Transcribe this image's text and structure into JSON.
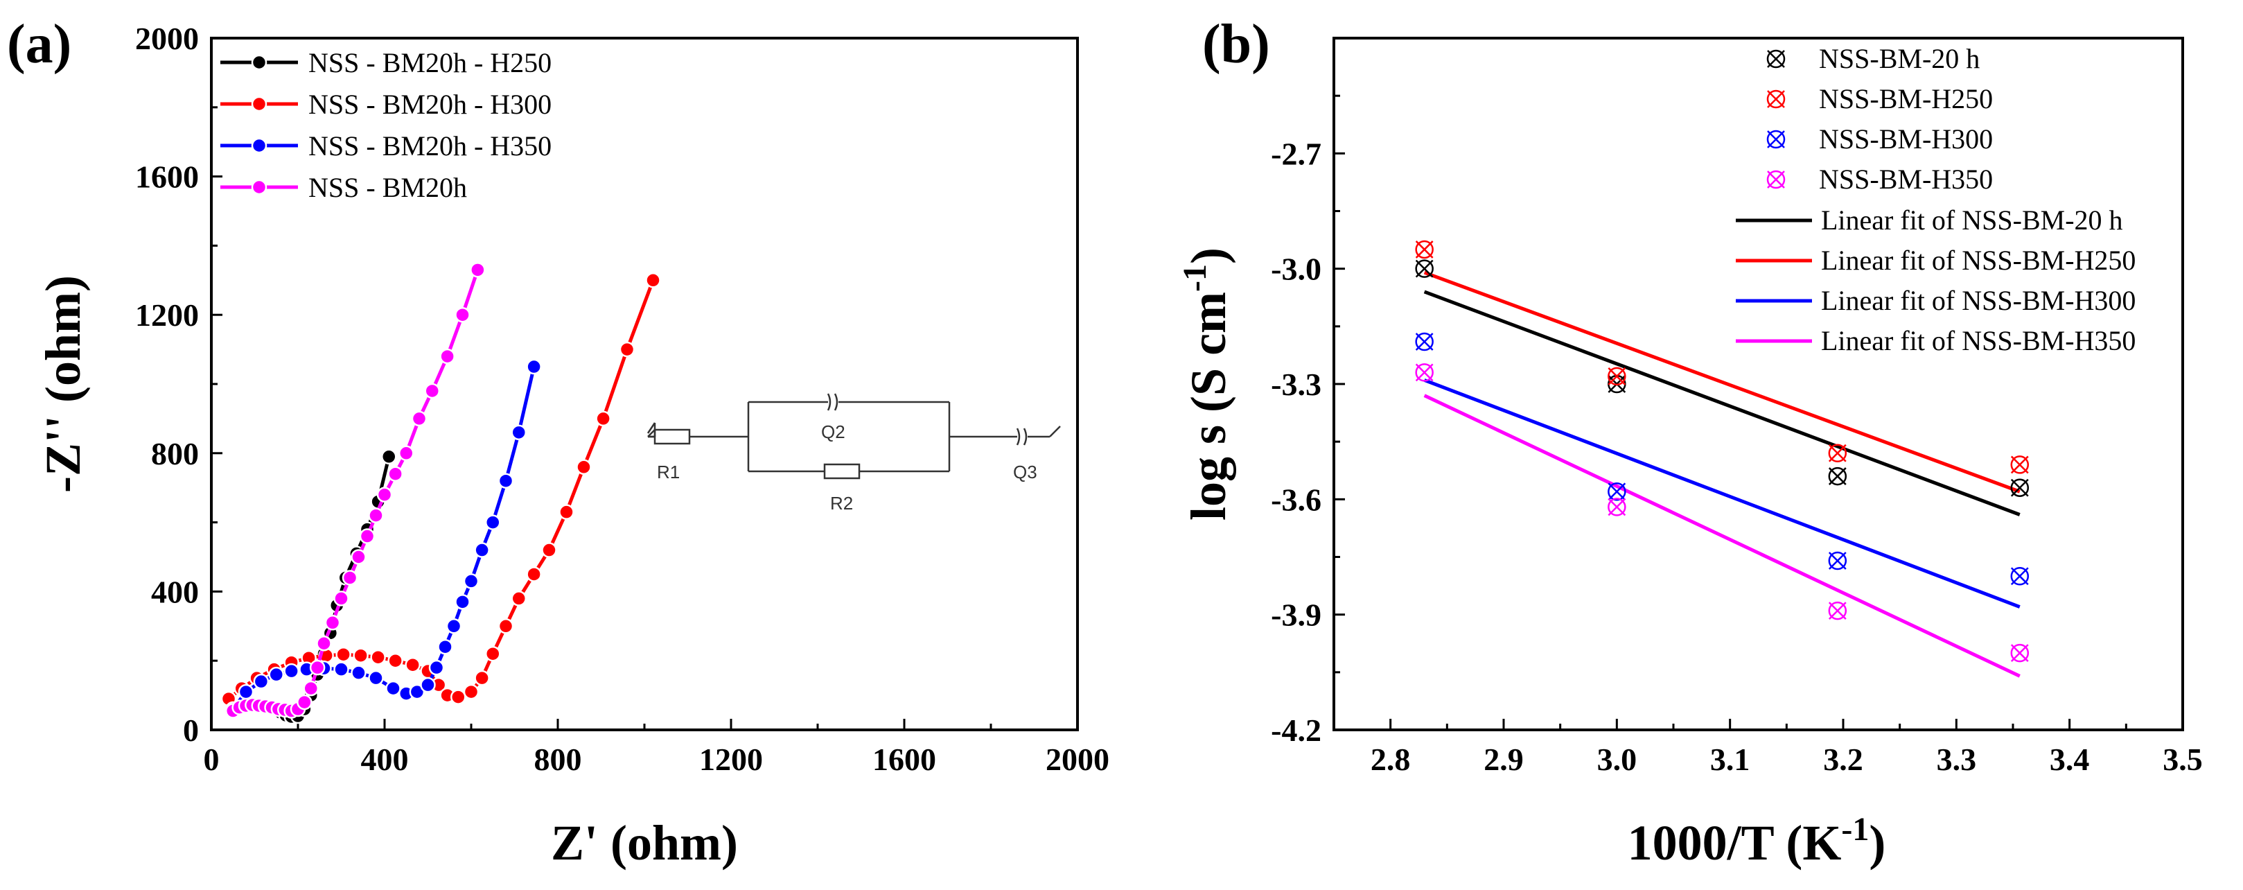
{
  "chart_data": [
    {
      "type": "line",
      "panel_label": "(a)",
      "xlabel": "Z' (ohm)",
      "ylabel": "-Z'' (ohm)",
      "xlim": [
        0,
        2000
      ],
      "ylim": [
        0,
        2000
      ],
      "xticks": [
        "0",
        "400",
        "800",
        "1200",
        "1600",
        "2000"
      ],
      "yticks": [
        "0",
        "400",
        "800",
        "1200",
        "1600",
        "2000"
      ],
      "legend_position": "top-left",
      "series": [
        {
          "name": "NSS - BM20h - H250",
          "color": "#000000",
          "marker": "circle",
          "x": [
            150,
            160,
            172,
            185,
            200,
            215,
            230,
            245,
            260,
            275,
            290,
            310,
            335,
            360,
            385,
            410
          ],
          "y": [
            60,
            50,
            42,
            38,
            40,
            60,
            100,
            160,
            220,
            280,
            360,
            440,
            510,
            580,
            660,
            790
          ]
        },
        {
          "name": "NSS - BM20h - H300",
          "color": "#ff0000",
          "marker": "circle",
          "x": [
            40,
            70,
            105,
            145,
            185,
            225,
            265,
            305,
            345,
            385,
            425,
            465,
            500,
            525,
            545,
            570,
            600,
            625,
            650,
            680,
            710,
            745,
            780,
            820,
            860,
            905,
            960,
            1020
          ],
          "y": [
            90,
            120,
            150,
            175,
            195,
            208,
            215,
            218,
            215,
            210,
            200,
            188,
            170,
            130,
            100,
            95,
            110,
            150,
            220,
            300,
            380,
            450,
            520,
            630,
            760,
            900,
            1100,
            1300
          ]
        },
        {
          "name": "NSS - BM20h - H350",
          "color": "#0000ff",
          "marker": "circle",
          "x": [
            50,
            80,
            115,
            150,
            185,
            220,
            260,
            300,
            340,
            380,
            420,
            450,
            475,
            500,
            520,
            540,
            560,
            580,
            600,
            625,
            650,
            680,
            710,
            745
          ],
          "y": [
            60,
            110,
            140,
            160,
            170,
            175,
            178,
            175,
            165,
            150,
            120,
            105,
            110,
            130,
            180,
            240,
            300,
            370,
            430,
            520,
            600,
            720,
            860,
            1050
          ]
        },
        {
          "name": "NSS - BM20h",
          "color": "#ff00ff",
          "marker": "circle",
          "x": [
            50,
            65,
            80,
            95,
            110,
            125,
            140,
            155,
            170,
            185,
            200,
            215,
            230,
            245,
            260,
            280,
            300,
            320,
            340,
            360,
            380,
            400,
            425,
            450,
            480,
            510,
            545,
            580,
            615
          ],
          "y": [
            55,
            65,
            70,
            72,
            70,
            68,
            65,
            60,
            58,
            55,
            60,
            80,
            120,
            180,
            250,
            310,
            380,
            440,
            500,
            560,
            620,
            680,
            740,
            800,
            900,
            980,
            1080,
            1200,
            1330
          ]
        }
      ],
      "inset_circuit_labels": [
        "R1",
        "Q2",
        "R2",
        "Q3"
      ]
    },
    {
      "type": "scatter",
      "panel_label": "(b)",
      "xlabel": "1000/T (K",
      "xlabel_sup": "-1",
      "xlabel_end": ")",
      "ylabel": "log s (S cm",
      "ylabel_sup": "-1",
      "ylabel_end": ")",
      "xlim": [
        2.75,
        3.5
      ],
      "ylim": [
        -4.2,
        -2.4
      ],
      "xticks": [
        "2.8",
        "2.9",
        "3.0",
        "3.1",
        "3.2",
        "3.3",
        "3.4",
        "3.5"
      ],
      "yticks": [
        "-2.7",
        "-3.0",
        "-3.3",
        "-3.6",
        "-3.9",
        "-4.2"
      ],
      "legend_position": "top-right",
      "x": [
        2.83,
        3.0,
        3.195,
        3.356
      ],
      "series": [
        {
          "name": "NSS-BM-20 h",
          "color": "#000000",
          "marker": "crossed-circle",
          "y": [
            -3.0,
            -3.3,
            -3.54,
            -3.57
          ]
        },
        {
          "name": "NSS-BM-H250",
          "color": "#ff0000",
          "marker": "crossed-circle",
          "y": [
            -2.95,
            -3.28,
            -3.48,
            -3.51
          ]
        },
        {
          "name": "NSS-BM-H300",
          "color": "#0000ff",
          "marker": "crossed-circle",
          "y": [
            -3.19,
            -3.58,
            -3.76,
            -3.8
          ]
        },
        {
          "name": "NSS-BM-H350",
          "color": "#ff00ff",
          "marker": "crossed-circle",
          "y": [
            -3.27,
            -3.62,
            -3.89,
            -4.0
          ]
        }
      ],
      "fits": [
        {
          "name": "Linear fit of NSS-BM-20 h",
          "color": "#000000",
          "x": [
            2.83,
            3.356
          ],
          "y": [
            -3.06,
            -3.64
          ]
        },
        {
          "name": "Linear fit of NSS-BM-H250",
          "color": "#ff0000",
          "x": [
            2.83,
            3.356
          ],
          "y": [
            -3.01,
            -3.58
          ]
        },
        {
          "name": "Linear fit of NSS-BM-H300",
          "color": "#0000ff",
          "x": [
            2.83,
            3.356
          ],
          "y": [
            -3.29,
            -3.88
          ]
        },
        {
          "name": "Linear fit of NSS-BM-H350",
          "color": "#ff00ff",
          "x": [
            2.83,
            3.356
          ],
          "y": [
            -3.33,
            -4.06
          ]
        }
      ]
    }
  ]
}
